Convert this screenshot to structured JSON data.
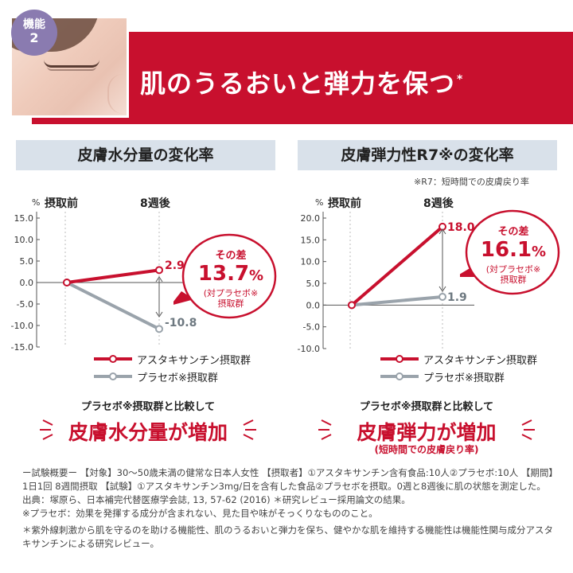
{
  "badge": {
    "label": "機能",
    "number": "2"
  },
  "header": {
    "title": "肌のうるおいと弾力を保つ",
    "mark": "*"
  },
  "charts": {
    "moisture": {
      "title": "皮膚水分量の変化率",
      "unit": "%",
      "before_label": "摂取前",
      "after_label": "8週後",
      "value_labels": {
        "astaxanthin": "2.9",
        "placebo": "-10.8"
      },
      "diff": {
        "lead": "その差",
        "value": "13.7",
        "unit": "%",
        "note1": "(対プラセボ※",
        "note2": "摂取群"
      }
    },
    "elasticity": {
      "title": "皮膚弾力性R7※の変化率",
      "note": "※R7：短時間での皮膚戻り率",
      "unit": "%",
      "before_label": "摂取前",
      "after_label": "8週後",
      "value_labels": {
        "astaxanthin": "18.0",
        "placebo": "1.9"
      },
      "diff": {
        "lead": "その差",
        "value": "16.1",
        "unit": "%",
        "note1": "(対プラセボ※",
        "note2": "摂取群"
      }
    }
  },
  "chart_data": [
    {
      "type": "line",
      "title": "皮膚水分量の変化率",
      "x": [
        "摂取前",
        "8週後"
      ],
      "ylabel": "%",
      "ylim": [
        -15,
        15
      ],
      "yticks": [
        "15.0",
        "10.0",
        "5.0",
        "0.0",
        "-5.0",
        "-10.0",
        "-15.0"
      ],
      "series": [
        {
          "name": "アスタキサンチン摂取群",
          "values": [
            0,
            2.9
          ],
          "color": "#c8102e"
        },
        {
          "name": "プラセボ※摂取群",
          "values": [
            0,
            -10.8
          ],
          "color": "#9aa3ab"
        }
      ]
    },
    {
      "type": "line",
      "title": "皮膚弾力性R7※の変化率",
      "x": [
        "摂取前",
        "8週後"
      ],
      "ylabel": "%",
      "ylim": [
        -10,
        20
      ],
      "yticks": [
        "20.0",
        "15.0",
        "10.0",
        "5.0",
        "0.0",
        "-5.0",
        "-10.0"
      ],
      "series": [
        {
          "name": "アスタキサンチン摂取群",
          "values": [
            0,
            18.0
          ],
          "color": "#c8102e"
        },
        {
          "name": "プラセボ※摂取群",
          "values": [
            0,
            1.9
          ],
          "color": "#9aa3ab"
        }
      ]
    }
  ],
  "legend": {
    "astaxanthin": "アスタキサンチン摂取群",
    "placebo": "プラセボ※摂取群"
  },
  "results": {
    "left": {
      "compare": "プラセボ※摂取群と比較して",
      "headline": "皮膚水分量が増加"
    },
    "right": {
      "compare": "プラセボ※摂取群と比較して",
      "headline": "皮膚弾力が増加",
      "sub": "(短時間での皮膚戻り率)"
    }
  },
  "footnotes": {
    "line1": "ー試験概要ー 【対象】30〜50歳未満の健常な日本人女性 【摂取者】①アスタキサンチン含有食品:10人②プラセボ:10人 【期間】1日1回 8週間摂取 【試験】①アスタキサンチン3mg/日を含有した食品②プラセボを摂取。0週と8週後に肌の状態を測定した。",
    "line2": "出典：塚原ら、日本補完代替医療学会誌, 13, 57-62 (2016) ＊研究レビュー採用論文の結果。",
    "line3": "※プラセボ：効果を発揮する成分が含まれない、見た目や味がそっくりなもののこと。",
    "line4": "＊紫外線刺激から肌を守るのを助ける機能性、肌のうるおいと弾力を保ち、健やかな肌を維持する機能性は機能性関与成分アスタキサンチンによる研究レビュー。"
  },
  "colors": {
    "accent": "#c8102e",
    "placebo": "#9aa3ab",
    "panel": "#d9e1ea",
    "badge": "#8a7bb0"
  }
}
